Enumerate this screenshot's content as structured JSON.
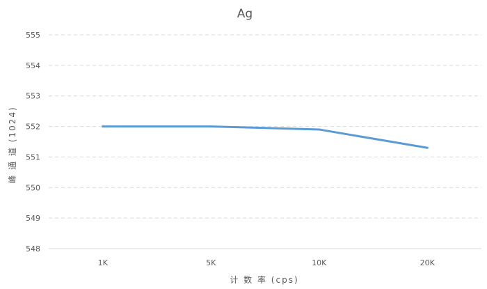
{
  "chart_data": {
    "type": "line",
    "title": "Ag",
    "xlabel": "计 数 率 (cps)",
    "ylabel": "峰 通 道 (1024)",
    "categories": [
      "1K",
      "5K",
      "10K",
      "20K"
    ],
    "series": [
      {
        "values": [
          552.0,
          552.0,
          551.9,
          551.3
        ]
      }
    ],
    "ylim": [
      548,
      555
    ],
    "yticks": [
      "548",
      "549",
      "550",
      "551",
      "552",
      "553",
      "554",
      "555"
    ],
    "grid": true,
    "colors": {
      "line": "#5b9bd5",
      "grid": "#d9d9d9",
      "axis": "#d9d9d9"
    }
  }
}
